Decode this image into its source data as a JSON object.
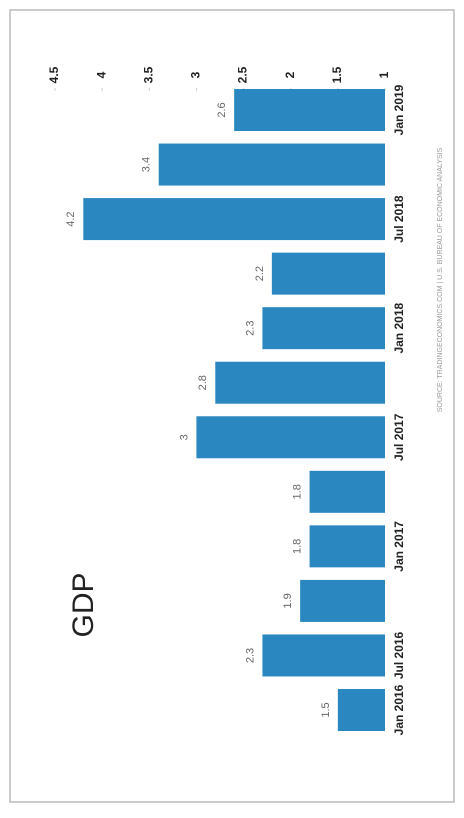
{
  "chart_data": {
    "type": "bar",
    "title": "GDP",
    "source": "SOURCE: TRADINGECONOMICS.COM | U.S. BUREAU OF ECONOMIC ANALYSIS",
    "categories": [
      "Jan 2016",
      "Jul 2016",
      null,
      "Jan 2017",
      null,
      "Jul 2017",
      null,
      "Jan 2018",
      null,
      "Jul 2018",
      null,
      "Jan 2019"
    ],
    "values": [
      1.5,
      2.3,
      1.9,
      1.8,
      1.8,
      3,
      2.8,
      2.3,
      2.2,
      4.2,
      3.4,
      2.6
    ],
    "color": "#2a87bf",
    "ylim": [
      1,
      4.5
    ],
    "yticks": [
      1,
      1.5,
      2,
      2.5,
      3,
      3.5,
      4,
      4.5
    ],
    "grid": false
  }
}
